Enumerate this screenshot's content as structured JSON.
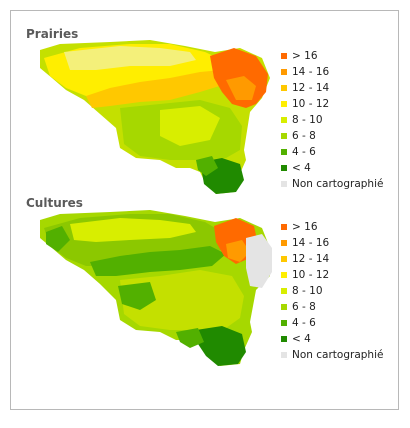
{
  "panels": [
    {
      "title": "Prairies",
      "legend": [
        {
          "label": "> 16",
          "color": "#ff6a00"
        },
        {
          "label": "14 - 16",
          "color": "#ff9a00"
        },
        {
          "label": "12 - 14",
          "color": "#ffc800"
        },
        {
          "label": "10 - 12",
          "color": "#ffee00"
        },
        {
          "label": "8 - 10",
          "color": "#d8ee00"
        },
        {
          "label": "6 - 8",
          "color": "#a6d800"
        },
        {
          "label": "4 - 6",
          "color": "#52b000"
        },
        {
          "label": "< 4",
          "color": "#208a00"
        },
        {
          "label": "Non cartographié",
          "color": "#e4e4e4"
        }
      ]
    },
    {
      "title": "Cultures",
      "legend": [
        {
          "label": "> 16",
          "color": "#ff6a00"
        },
        {
          "label": "14 - 16",
          "color": "#ff9a00"
        },
        {
          "label": "12 - 14",
          "color": "#ffc800"
        },
        {
          "label": "10 - 12",
          "color": "#ffee00"
        },
        {
          "label": "8 - 10",
          "color": "#d8ee00"
        },
        {
          "label": "6 - 8",
          "color": "#a6d800"
        },
        {
          "label": "4 - 6",
          "color": "#52b000"
        },
        {
          "label": "< 4",
          "color": "#208a00"
        },
        {
          "label": "Non cartographié",
          "color": "#e4e4e4"
        }
      ]
    }
  ]
}
